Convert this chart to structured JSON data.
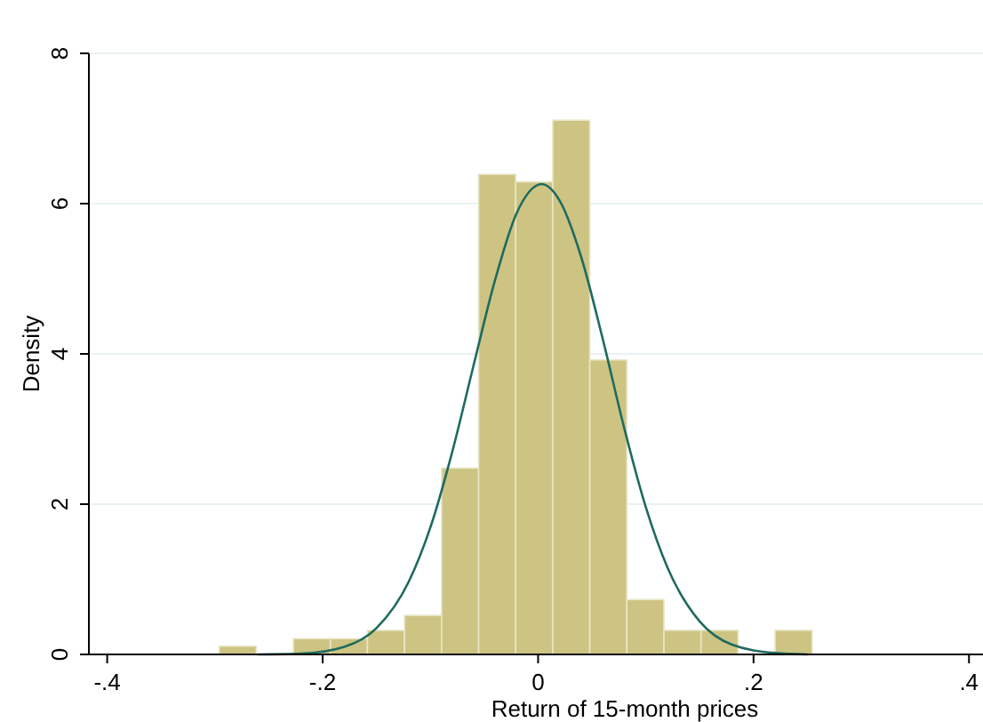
{
  "chart_data": {
    "type": "histogram",
    "xlabel": "Return of 15-month prices",
    "ylabel": "Density",
    "bins": [
      -0.296,
      -0.2616,
      -0.2272,
      -0.1928,
      -0.1584,
      -0.124,
      -0.0896,
      -0.0552,
      -0.0208,
      0.0136,
      0.048,
      0.0824,
      0.1168,
      0.1512,
      0.1856,
      0.22,
      0.2544
    ],
    "values": [
      0.11,
      0,
      0.21,
      0.21,
      0.32,
      0.52,
      2.48,
      6.39,
      6.29,
      7.11,
      3.92,
      0.73,
      0.32,
      0.32,
      0,
      0.32
    ],
    "color": "#cdc483",
    "series": [
      {
        "type": "line",
        "color": "#1e6b5f",
        "x": [
          -0.26,
          -0.22,
          -0.18,
          -0.15,
          -0.12,
          -0.1,
          -0.08,
          -0.06,
          -0.04,
          -0.02,
          0,
          0.003,
          0.02,
          0.04,
          0.06,
          0.08,
          0.1,
          0.12,
          0.15,
          0.18,
          0.22,
          0.25
        ],
        "values": [
          0,
          0.01,
          0.1,
          0.35,
          0.97,
          1.69,
          2.68,
          3.84,
          4.98,
          5.87,
          6.25,
          6.26,
          6.04,
          5.29,
          4.2,
          3.01,
          1.96,
          1.16,
          0.44,
          0.13,
          0.02,
          0
        ]
      }
    ],
    "xlim": [
      -0.417,
      0.413
    ],
    "xticks": [
      {
        "value": -0.4,
        "label": "-.4"
      },
      {
        "value": -0.2,
        "label": "-.2"
      },
      0,
      {
        "value": 0.2,
        "label": ".2"
      },
      {
        "value": 0.4,
        "label": ".4"
      }
    ],
    "ylim": [
      0,
      8
    ],
    "yticks": [
      0,
      2,
      4,
      6,
      8
    ],
    "grid": "y"
  }
}
